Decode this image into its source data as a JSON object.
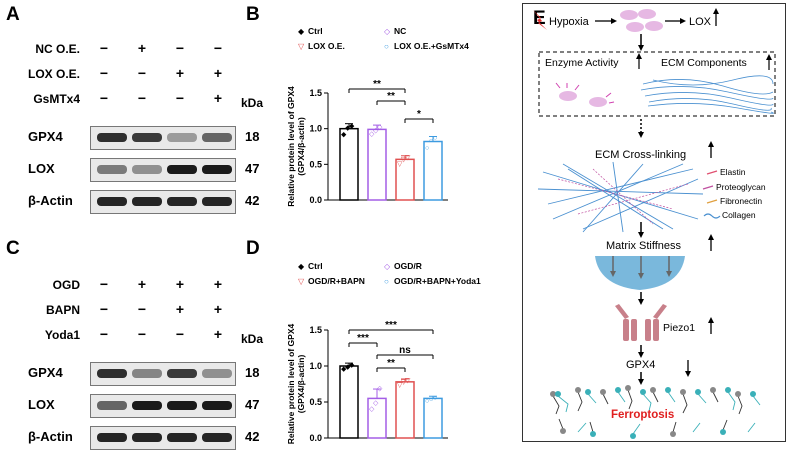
{
  "panels": {
    "A": "A",
    "B": "B",
    "C": "C",
    "D": "D",
    "E": "E"
  },
  "panel_a": {
    "rows": [
      {
        "label": "NC O.E.",
        "symbols": [
          "−",
          "+",
          "−",
          "−"
        ]
      },
      {
        "label": "LOX O.E.",
        "symbols": [
          "−",
          "−",
          "+",
          "+"
        ]
      },
      {
        "label": "GsMTx4",
        "symbols": [
          "−",
          "−",
          "−",
          "+"
        ]
      }
    ],
    "kda": "kDa",
    "blots": [
      {
        "label": "GPX4",
        "kda": "18",
        "intensity": [
          0.85,
          0.8,
          0.35,
          0.6
        ]
      },
      {
        "label": "LOX",
        "kda": "47",
        "intensity": [
          0.5,
          0.4,
          0.95,
          0.95
        ]
      },
      {
        "label": "β-Actin",
        "kda": "42",
        "intensity": [
          0.9,
          0.9,
          0.9,
          0.9
        ]
      }
    ]
  },
  "panel_c": {
    "rows": [
      {
        "label": "OGD",
        "symbols": [
          "−",
          "+",
          "+",
          "+"
        ]
      },
      {
        "label": "BAPN",
        "symbols": [
          "−",
          "−",
          "+",
          "+"
        ]
      },
      {
        "label": "Yoda1",
        "symbols": [
          "−",
          "−",
          "−",
          "+"
        ]
      }
    ],
    "kda": "kDa",
    "blots": [
      {
        "label": "GPX4",
        "kda": "18",
        "intensity": [
          0.85,
          0.45,
          0.8,
          0.4
        ]
      },
      {
        "label": "LOX",
        "kda": "47",
        "intensity": [
          0.6,
          0.95,
          0.95,
          0.95
        ]
      },
      {
        "label": "β-Actin",
        "kda": "42",
        "intensity": [
          0.9,
          0.9,
          0.9,
          0.9
        ]
      }
    ]
  },
  "chart_data": [
    {
      "type": "bar",
      "panel": "B",
      "ylabel": "Relative protein level of GPX4 (GPX4/β-actin)",
      "ylim": [
        0,
        1.5
      ],
      "yticks": [
        "0.0",
        "0.5",
        "1.0",
        "1.5"
      ],
      "series": [
        {
          "name": "Ctrl",
          "value": 1.0,
          "err": 0.07,
          "color": "#000000",
          "marker": "◆",
          "points": [
            0.93,
            1.02,
            1.05
          ]
        },
        {
          "name": "NC",
          "value": 0.99,
          "err": 0.06,
          "color": "#a45ee6",
          "marker": "◇",
          "points": [
            0.94,
            0.99,
            1.04
          ]
        },
        {
          "name": "LOX O.E.",
          "value": 0.57,
          "err": 0.05,
          "color": "#e05050",
          "marker": "▽",
          "points": [
            0.52,
            0.58,
            0.61
          ]
        },
        {
          "name": "LOX O.E.+GsMTx4",
          "value": 0.82,
          "err": 0.07,
          "color": "#3d9be0",
          "marker": "○",
          "points": [
            0.74,
            0.85,
            0.88
          ]
        }
      ],
      "significance": [
        {
          "from": 0,
          "to": 2,
          "label": "**"
        },
        {
          "from": 1,
          "to": 2,
          "label": "**"
        },
        {
          "from": 2,
          "to": 3,
          "label": "*"
        }
      ]
    },
    {
      "type": "bar",
      "panel": "D",
      "ylabel": "Relative protein level of GPX4 (GPX4/β-actin)",
      "ylim": [
        0,
        1.5
      ],
      "yticks": [
        "0.0",
        "0.5",
        "1.0",
        "1.5"
      ],
      "series": [
        {
          "name": "Ctrl",
          "value": 1.0,
          "err": 0.04,
          "color": "#000000",
          "marker": "◆",
          "points": [
            0.97,
            1.0,
            1.03
          ]
        },
        {
          "name": "OGD/R",
          "value": 0.55,
          "err": 0.13,
          "color": "#a45ee6",
          "marker": "◇",
          "points": [
            0.42,
            0.5,
            0.7
          ]
        },
        {
          "name": "OGD/R+BAPN",
          "value": 0.78,
          "err": 0.04,
          "color": "#e05050",
          "marker": "▽",
          "points": [
            0.75,
            0.79,
            0.81
          ]
        },
        {
          "name": "OGD/R+BAPN+Yoda1",
          "value": 0.55,
          "err": 0.03,
          "color": "#3d9be0",
          "marker": "○",
          "points": [
            0.53,
            0.55,
            0.57
          ]
        }
      ],
      "significance": [
        {
          "from": 0,
          "to": 3,
          "label": "***"
        },
        {
          "from": 0,
          "to": 1,
          "label": "***"
        },
        {
          "from": 1,
          "to": 3,
          "label": "ns"
        },
        {
          "from": 1,
          "to": 2,
          "label": "**"
        }
      ]
    }
  ],
  "panel_e": {
    "hypoxia": "Hypoxia",
    "lox": "LOX",
    "enzyme_activity": "Enzyme Activity",
    "ecm_components": "ECM Components",
    "ecm_crosslinking": "ECM Cross-linking",
    "legend": [
      "Elastin",
      "Proteoglycan",
      "Fibronectin",
      "Collagen"
    ],
    "matrix_stiffness": "Matrix Stiffness",
    "piezo1": "Piezo1",
    "gpx4": "GPX4",
    "ferroptosis": "Ferroptosis"
  }
}
